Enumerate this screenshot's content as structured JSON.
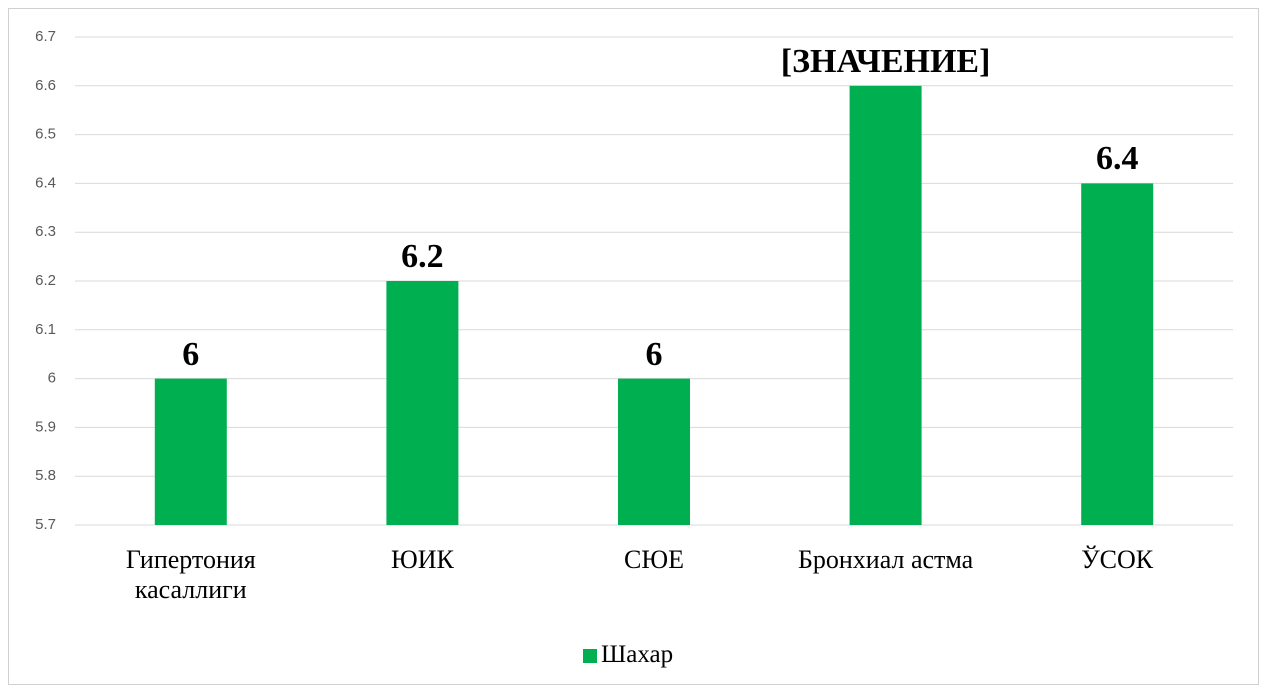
{
  "chart_data": {
    "type": "bar",
    "categories": [
      "Гипертония касаллиги",
      "ЮИК",
      "СЮЕ",
      "Бронхиал астма",
      "ЎСОК"
    ],
    "series": [
      {
        "name": "Шахар",
        "color": "#00b050",
        "values": [
          6,
          6.2,
          6,
          6.6,
          6.4
        ],
        "value_labels": [
          "6",
          "6.2",
          "6",
          "[ЗНАЧЕНИЕ]",
          "6.4"
        ]
      }
    ],
    "ylim": [
      5.7,
      6.7
    ],
    "yticks": [
      5.7,
      5.8,
      5.9,
      6,
      6.1,
      6.2,
      6.3,
      6.4,
      6.5,
      6.6,
      6.7
    ],
    "grid": true,
    "legend": "bottom"
  }
}
